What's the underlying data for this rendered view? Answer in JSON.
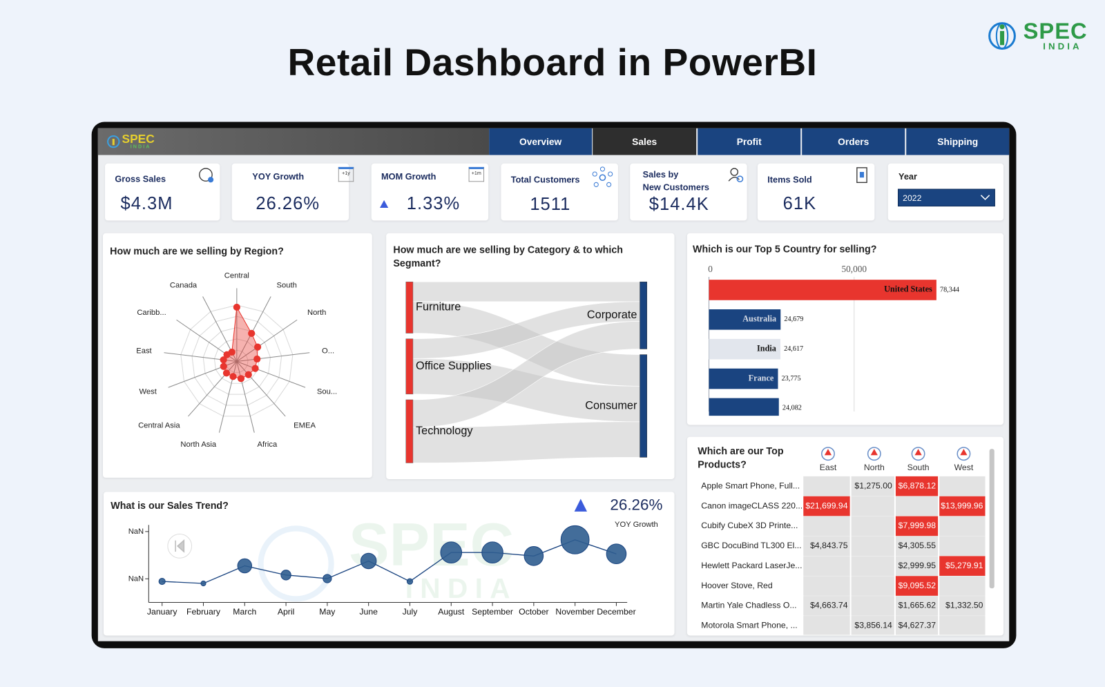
{
  "page_title": "Retail Dashboard in PowerBI",
  "brand": {
    "name": "SPEC",
    "tagline": "INDIA"
  },
  "tabs": [
    {
      "label": "Overview",
      "active": false
    },
    {
      "label": "Sales",
      "active": true
    },
    {
      "label": "Profit",
      "active": false
    },
    {
      "label": "Orders",
      "active": false
    },
    {
      "label": "Shipping",
      "active": false
    }
  ],
  "kpis": [
    {
      "title": "Gross Sales",
      "value": "$4.3M"
    },
    {
      "title": "YOY Growth",
      "value": "26.26%",
      "badge": "+1y"
    },
    {
      "title": "MOM Growth",
      "value": "1.33%",
      "badge": "+1m"
    },
    {
      "title": "Total Customers",
      "value": "1511"
    },
    {
      "title": [
        "Sales by",
        "New Customers"
      ],
      "value": "$14.4K"
    },
    {
      "title": "Items Sold",
      "value": "61K"
    }
  ],
  "year_filter": {
    "title": "Year",
    "value": "2022"
  },
  "chart_data": [
    {
      "type": "radar",
      "title": "How much are we selling by Region?",
      "categories": [
        "Central",
        "South",
        "North",
        "O...",
        "Sou...",
        "EMEA",
        "Africa",
        "North Asia",
        "Central Asia",
        "West",
        "East",
        "Caribb...",
        "Canada"
      ],
      "values": [
        77,
        45,
        36,
        29,
        28,
        25,
        25,
        22,
        22,
        20,
        19,
        17,
        15
      ],
      "rlim": [
        0,
        80
      ],
      "color": "#e8352e"
    },
    {
      "type": "sankey",
      "title": "How much are we selling by Category & to which Segmant?",
      "sources": [
        "Furniture",
        "Office Supplies",
        "Technology"
      ],
      "targets": [
        "Corporate",
        "Consumer"
      ],
      "links": [
        {
          "source": 0,
          "target": 0,
          "value": 0.5
        },
        {
          "source": 0,
          "target": 1,
          "value": 0.8
        },
        {
          "source": 1,
          "target": 0,
          "value": 0.5
        },
        {
          "source": 1,
          "target": 1,
          "value": 0.9
        },
        {
          "source": 2,
          "target": 0,
          "value": 0.7
        },
        {
          "source": 2,
          "target": 1,
          "value": 0.9
        }
      ],
      "source_color": "#e8352e",
      "target_color": "#1a4480",
      "link_color": "#c4c4c4"
    },
    {
      "type": "bar",
      "orientation": "horizontal",
      "title": "Which is our Top 5 Country for selling?",
      "categories": [
        "United States",
        "Australia",
        "India",
        "France",
        null
      ],
      "values": [
        78344,
        24679,
        24617,
        23775,
        24082
      ],
      "value_labels": [
        "78,344",
        "24,679",
        "24,617",
        "23,775",
        "24,082"
      ],
      "colors": [
        "#e8352e",
        "#1a4480",
        "#e2e6ed",
        "#1a4480",
        "#1a4480"
      ],
      "xlim": [
        0,
        100000
      ],
      "xticks": [
        0,
        {
          "value": 50000,
          "label": "50,000"
        }
      ],
      "grid": true
    },
    {
      "type": "line",
      "title": "What is our Sales Trend?",
      "kpi_value": "26.26%",
      "kpi_label": "YOY Growth",
      "x": [
        "January",
        "February",
        "March",
        "April",
        "May",
        "June",
        "July",
        "August",
        "September",
        "October",
        "November",
        "December"
      ],
      "values": [
        178,
        161,
        310,
        232,
        202,
        351,
        178,
        423,
        423,
        393,
        530,
        411
      ],
      "sizes": [
        4.5,
        3.5,
        10,
        7,
        6,
        11,
        4,
        15,
        15,
        13.5,
        20,
        14
      ],
      "ylim": [
        0,
        650
      ],
      "yticks": [
        {
          "value": 200,
          "label": "NaN"
        },
        {
          "value": 600,
          "label": "NaN"
        }
      ],
      "color": "#1a4480",
      "marker_color": "#2f5d8f"
    }
  ],
  "products_table": {
    "title": "Which are our Top Products?",
    "columns": [
      "East",
      "North",
      "South",
      "West"
    ],
    "highlight_color": "#e8352e",
    "rows": [
      {
        "name": "Apple Smart Phone, Full...",
        "cells": [
          null,
          "$1,275.00",
          "$6,878.12",
          null
        ],
        "highlight": [
          false,
          false,
          true,
          false
        ]
      },
      {
        "name": "Canon imageCLASS 220...",
        "cells": [
          "$21,699.94",
          null,
          null,
          "$13,999.96"
        ],
        "highlight": [
          true,
          false,
          false,
          true
        ]
      },
      {
        "name": "Cubify CubeX 3D Printe...",
        "cells": [
          null,
          null,
          "$7,999.98",
          null
        ],
        "highlight": [
          false,
          false,
          true,
          false
        ]
      },
      {
        "name": "GBC DocuBind TL300 El...",
        "cells": [
          "$4,843.75",
          null,
          "$4,305.55",
          null
        ],
        "highlight": [
          false,
          false,
          false,
          false
        ]
      },
      {
        "name": "Hewlett Packard LaserJe...",
        "cells": [
          null,
          null,
          "$2,999.95",
          "$5,279.91"
        ],
        "highlight": [
          false,
          false,
          false,
          true
        ]
      },
      {
        "name": "Hoover Stove, Red",
        "cells": [
          null,
          null,
          "$9,095.52",
          null
        ],
        "highlight": [
          false,
          false,
          true,
          false
        ]
      },
      {
        "name": "Martin Yale Chadless O...",
        "cells": [
          "$4,663.74",
          null,
          "$1,665.62",
          "$1,332.50"
        ],
        "highlight": [
          false,
          false,
          false,
          false
        ]
      },
      {
        "name": "Motorola Smart Phone, ...",
        "cells": [
          null,
          "$3,856.14",
          "$4,627.37",
          null
        ],
        "highlight": [
          false,
          false,
          false,
          false
        ]
      }
    ]
  }
}
